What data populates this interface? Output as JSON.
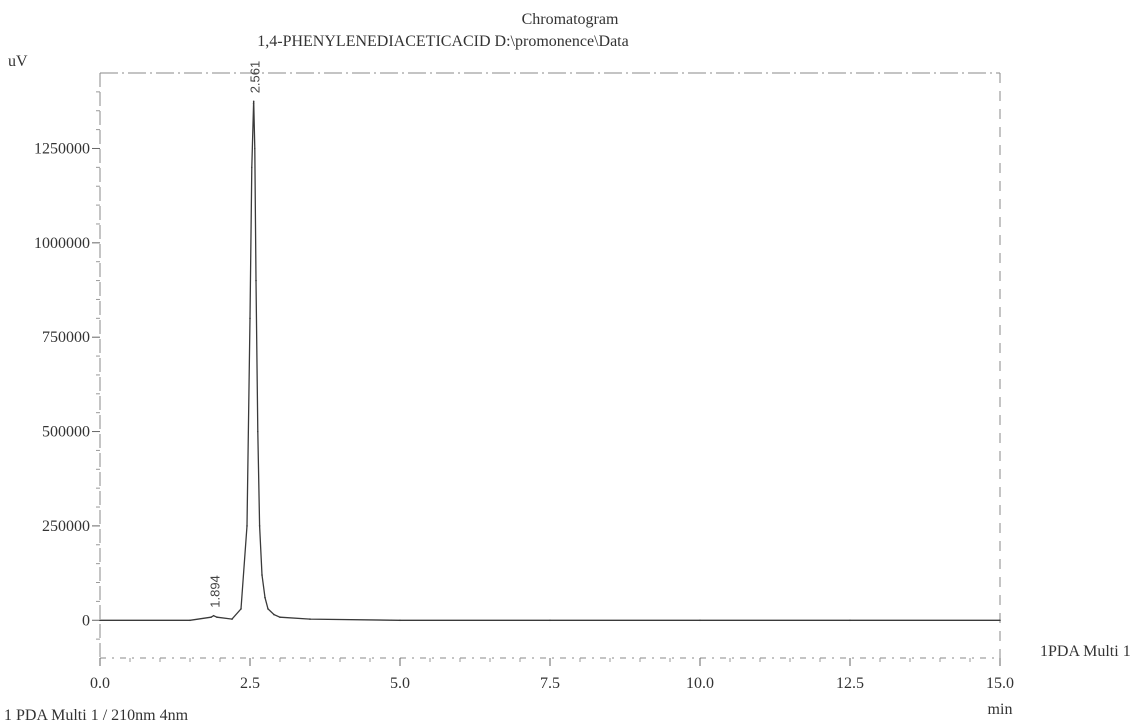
{
  "chart_data": {
    "type": "line",
    "title": "Chromatogram",
    "subtitle": "1,4-PHENYLENEDIACETICACID D:\\promonence\\Data",
    "ylabel": "uV",
    "xlabel": "min",
    "xlim": [
      0,
      15
    ],
    "ylim": [
      -100000,
      1450000
    ],
    "x_ticks": [
      "0.0",
      "2.5",
      "5.0",
      "7.5",
      "10.0",
      "12.5",
      "15.0"
    ],
    "y_ticks": [
      "0",
      "250000",
      "500000",
      "750000",
      "1000000",
      "1250000"
    ],
    "series": [
      {
        "name": "1PDA Multi 1",
        "x": [
          0,
          1.5,
          1.85,
          1.894,
          1.95,
          2.2,
          2.35,
          2.45,
          2.5,
          2.53,
          2.56,
          2.561,
          2.58,
          2.6,
          2.63,
          2.66,
          2.7,
          2.75,
          2.8,
          2.9,
          3.0,
          3.5,
          5.0,
          7.5,
          10.0,
          12.5,
          15.0
        ],
        "y": [
          0,
          0,
          8000,
          12000,
          8000,
          3000,
          30000,
          250000,
          800000,
          1200000,
          1370000,
          1375000,
          1250000,
          900000,
          500000,
          250000,
          120000,
          60000,
          30000,
          15000,
          8000,
          3000,
          0,
          0,
          0,
          0,
          0
        ]
      }
    ],
    "peak_labels": [
      {
        "x": 1.894,
        "y": 12000,
        "text": "1.894"
      },
      {
        "x": 2.561,
        "y": 1375000,
        "text": "2.561"
      }
    ],
    "legend": "right",
    "footer": "1 PDA Multi 1 / 210nm 4nm",
    "grid": false
  }
}
